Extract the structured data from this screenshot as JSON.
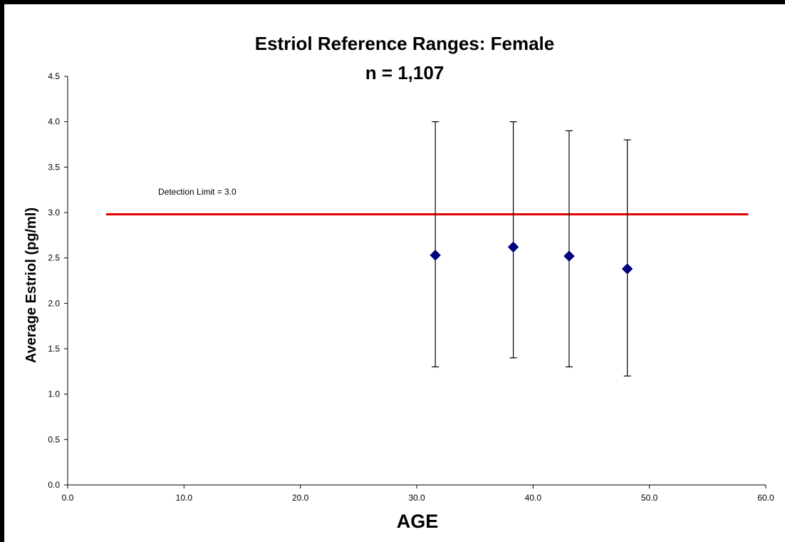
{
  "chart_data": {
    "type": "scatter",
    "title": "Estriol Reference Ranges: Female",
    "subtitle": "n = 1,107",
    "xlabel": "AGE",
    "ylabel": "Average Estriol (pg/ml)",
    "xlim": [
      0,
      60
    ],
    "ylim": [
      0,
      4.5
    ],
    "x_ticks": [
      "0.0",
      "10.0",
      "20.0",
      "30.0",
      "40.0",
      "50.0",
      "60.0"
    ],
    "y_ticks": [
      "0.0",
      "0.5",
      "1.0",
      "1.5",
      "2.0",
      "2.5",
      "3.0",
      "3.5",
      "4.0",
      "4.5"
    ],
    "grid": false,
    "series": [
      {
        "marker": "diamond",
        "color": "#000080",
        "points": [
          {
            "x": 31.6,
            "y": 2.53,
            "low": 1.3,
            "high": 4.0
          },
          {
            "x": 38.3,
            "y": 2.62,
            "low": 1.4,
            "high": 4.0
          },
          {
            "x": 43.1,
            "y": 2.52,
            "low": 1.3,
            "high": 3.9
          },
          {
            "x": 48.1,
            "y": 2.38,
            "low": 1.2,
            "high": 3.8
          }
        ]
      }
    ],
    "reference_line": {
      "y": 2.98,
      "x_start": 3.3,
      "x_end": 58.5,
      "color": "#e00000"
    },
    "annotation": "Detection Limit = 3.0"
  }
}
